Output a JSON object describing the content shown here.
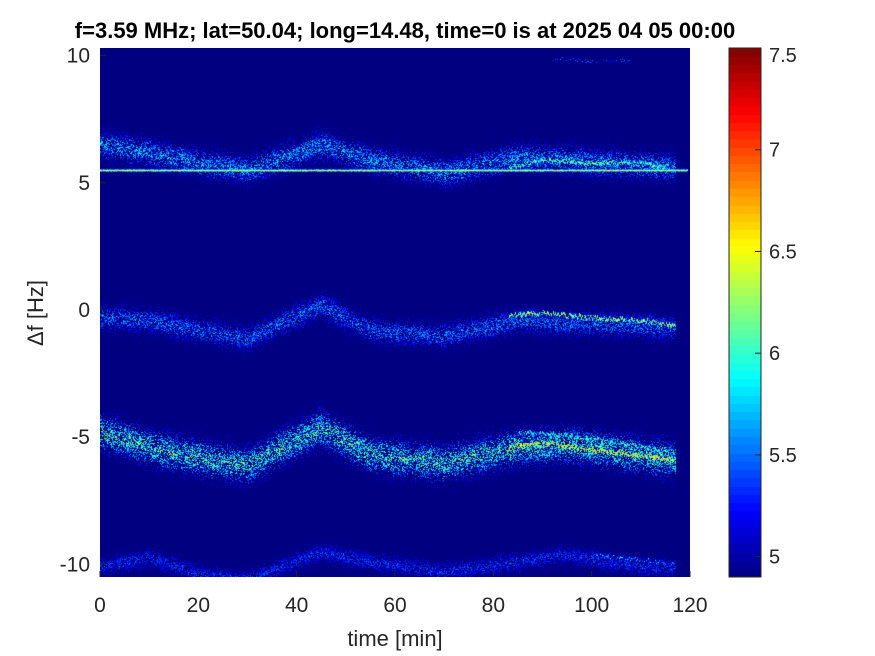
{
  "chart_data": {
    "type": "heatmap",
    "title": "f=3.59 MHz;  lat=50.04; long=14.48, time=0 is at 2025 04 05 00:00",
    "xlabel": "time [min]",
    "ylabel": "Δf [Hz]",
    "xlim": [
      0,
      120
    ],
    "ylim": [
      -10.5,
      10.3
    ],
    "xticks": [
      0,
      20,
      40,
      60,
      80,
      100,
      120
    ],
    "xtick_labels": [
      "0",
      "20",
      "40",
      "60",
      "80",
      "100",
      "120"
    ],
    "yticks": [
      10,
      5,
      0,
      -5,
      -10
    ],
    "ytick_labels": [
      "10",
      "5",
      "0",
      "-5",
      "-10"
    ],
    "colorbar": {
      "colormap": "jet",
      "range": [
        4.9,
        7.5
      ],
      "ticks": [
        5,
        5.5,
        6,
        6.5,
        7,
        7.5
      ],
      "tick_labels": [
        "5",
        "5.5",
        "6",
        "6.5",
        "7",
        "7.5"
      ]
    },
    "background_value": 4.9,
    "steady_line": {
      "df_hz": 5.5,
      "value": 6.7
    },
    "traces": [
      {
        "center_df_hz": 5.5,
        "offset_x_min": [
          0,
          10,
          20,
          30,
          45,
          55,
          70,
          85,
          95,
          110,
          117
        ],
        "offset_y_hz": [
          1.0,
          0.7,
          0.3,
          0.0,
          1.0,
          0.4,
          -0.1,
          0.5,
          0.4,
          0.2,
          0.1
        ],
        "spread_hz": 0.45,
        "intensity": 5.55,
        "x_end_min": 117
      },
      {
        "center_df_hz": 0.0,
        "offset_x_min": [
          0,
          10,
          20,
          30,
          45,
          55,
          70,
          85,
          95,
          110,
          117
        ],
        "offset_y_hz": [
          -0.3,
          -0.4,
          -0.8,
          -1.1,
          0.2,
          -0.8,
          -1.0,
          -0.4,
          -0.5,
          -0.6,
          -0.7
        ],
        "spread_hz": 0.4,
        "intensity": 5.45,
        "x_end_min": 117
      },
      {
        "center_df_hz": -5.5,
        "offset_x_min": [
          0,
          10,
          20,
          30,
          45,
          55,
          70,
          85,
          95,
          110,
          117
        ],
        "offset_y_hz": [
          0.7,
          0.1,
          -0.3,
          -0.6,
          0.9,
          -0.2,
          -0.5,
          0.1,
          0.2,
          -0.2,
          -0.4
        ],
        "spread_hz": 0.55,
        "intensity": 5.85,
        "x_end_min": 117
      },
      {
        "center_df_hz": -10.0,
        "offset_x_min": [
          0,
          10,
          20,
          30,
          45,
          55,
          70,
          85,
          95,
          110,
          117
        ],
        "offset_y_hz": [
          -0.1,
          0.3,
          -0.4,
          -0.6,
          0.5,
          0.1,
          -0.3,
          0.1,
          0.4,
          -0.1,
          -0.1
        ],
        "spread_hz": 0.3,
        "intensity": 5.3,
        "x_end_min": 117
      }
    ],
    "doppler_tracks": [
      {
        "x_min": [
          83,
          90,
          100,
          110,
          115
        ],
        "df_hz": [
          5.6,
          5.9,
          5.8,
          5.8,
          5.6
        ],
        "value": 6.6
      },
      {
        "x_min": [
          83,
          90,
          100,
          110,
          117
        ],
        "df_hz": [
          -0.2,
          -0.1,
          -0.3,
          -0.4,
          -0.6
        ],
        "value": 6.8
      },
      {
        "x_min": [
          83,
          90,
          100,
          110,
          117
        ],
        "df_hz": [
          -5.4,
          -5.2,
          -5.5,
          -5.7,
          -5.9
        ],
        "value": 7.0
      },
      {
        "x_min": [
          85,
          95,
          105,
          117
        ],
        "df_hz": [
          -4.8,
          -4.9,
          -5.2,
          -5.6
        ],
        "value": 6.4
      },
      {
        "x_min": [
          100,
          110,
          117
        ],
        "df_hz": [
          -9.6,
          -9.8,
          -10.0
        ],
        "value": 6.0
      },
      {
        "x_min": [
          92,
          100,
          108
        ],
        "df_hz": [
          9.9,
          9.8,
          9.8
        ],
        "value": 5.6
      }
    ]
  }
}
